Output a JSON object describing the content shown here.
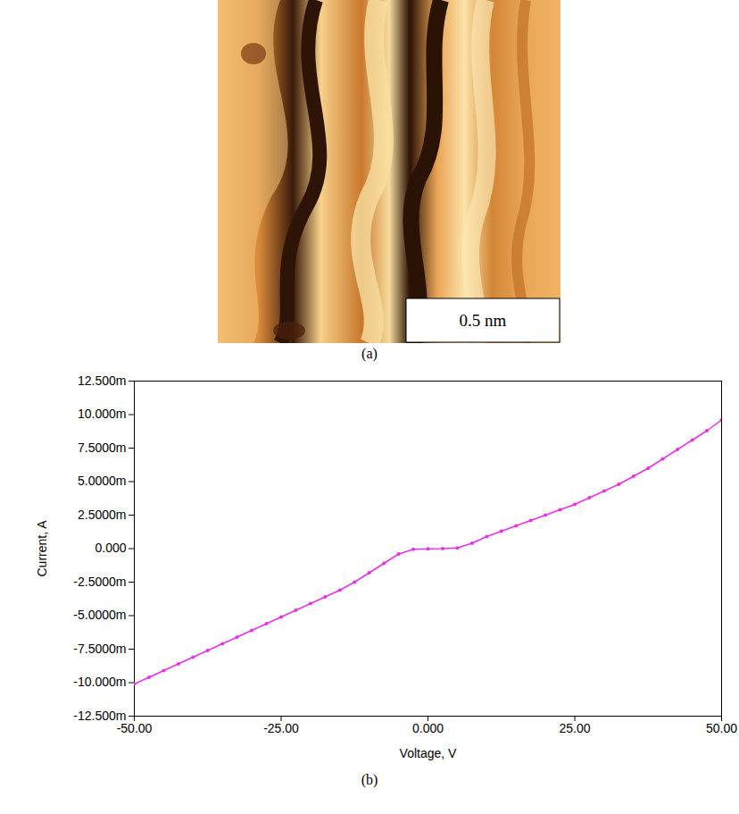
{
  "image_panel": {
    "scale_bar": "0.5 nm",
    "caption": "(a)"
  },
  "chart_data": {
    "type": "line",
    "caption": "(b)",
    "x_label": "Voltage, V",
    "y_label": "Current, A",
    "x": [
      -50,
      -47.5,
      -45,
      -42.5,
      -40,
      -37.5,
      -35,
      -32.5,
      -30,
      -27.5,
      -25,
      -22.5,
      -20,
      -17.5,
      -15,
      -12.5,
      -10,
      -7.5,
      -5,
      -2.5,
      0,
      2.5,
      5,
      7.5,
      10,
      12.5,
      15,
      17.5,
      20,
      22.5,
      25,
      27.5,
      30,
      32.5,
      35,
      37.5,
      40,
      42.5,
      45,
      47.5,
      50
    ],
    "values": [
      -0.0101,
      -0.0096,
      -0.0091,
      -0.0086,
      -0.0081,
      -0.0076,
      -0.0071,
      -0.0066,
      -0.0061,
      -0.0056,
      -0.0051,
      -0.0046,
      -0.0041,
      -0.0036,
      -0.0031,
      -0.0025,
      -0.0018,
      -0.0011,
      -0.0004,
      -5e-05,
      -2e-05,
      0.0,
      5e-05,
      0.0004,
      0.0009,
      0.0013,
      0.0017,
      0.0021,
      0.0025,
      0.0029,
      0.0033,
      0.0038,
      0.0043,
      0.0048,
      0.0054,
      0.006,
      0.0067,
      0.0074,
      0.0081,
      0.0088,
      0.0096
    ],
    "color": "#e830e8",
    "marker": "circle",
    "line_style": "solid",
    "grid": false,
    "xlim": [
      -50,
      50
    ],
    "ylim": [
      -0.0125,
      0.0125
    ],
    "xticks": [
      {
        "value": -50,
        "label": "-50.00"
      },
      {
        "value": -25,
        "label": "-25.00"
      },
      {
        "value": 0,
        "label": "0.000"
      },
      {
        "value": 25,
        "label": "25.00"
      },
      {
        "value": 50,
        "label": "50.00"
      }
    ],
    "yticks": [
      {
        "value": -0.0125,
        "label": "-12.500m"
      },
      {
        "value": -0.01,
        "label": "-10.000m"
      },
      {
        "value": -0.0075,
        "label": "-7.5000m"
      },
      {
        "value": -0.005,
        "label": "-5.0000m"
      },
      {
        "value": -0.0025,
        "label": "-2.5000m"
      },
      {
        "value": 0,
        "label": "0.000"
      },
      {
        "value": 0.0025,
        "label": "2.5000m"
      },
      {
        "value": 0.005,
        "label": "5.0000m"
      },
      {
        "value": 0.0075,
        "label": "7.5000m"
      },
      {
        "value": 0.01,
        "label": "10.000m"
      },
      {
        "value": 0.0125,
        "label": "12.500m"
      }
    ]
  }
}
